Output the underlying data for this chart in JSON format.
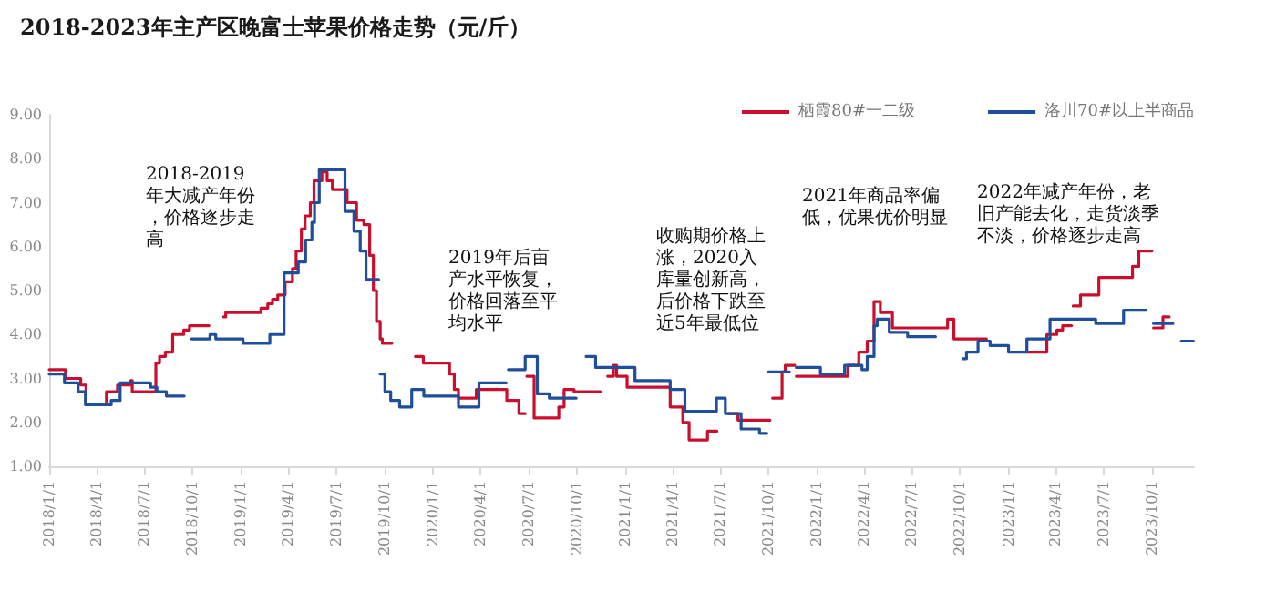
{
  "chart_data": {
    "type": "step",
    "title": "2018-2023年主产区晚富士苹果价格走势（元/斤）",
    "xlim": [
      "2018-01-01",
      "2023-12-20"
    ],
    "xticks": [
      {
        "value": "2018-01-01",
        "label": "2018/1/1"
      },
      {
        "value": "2018-04-01",
        "label": "2018/4/1"
      },
      {
        "value": "2018-07-01",
        "label": "2018/7/1"
      },
      {
        "value": "2018-10-01",
        "label": "2018/10/1"
      },
      {
        "value": "2019-01-01",
        "label": "2019/1/1"
      },
      {
        "value": "2019-04-01",
        "label": "2019/4/1"
      },
      {
        "value": "2019-07-01",
        "label": "2019/7/1"
      },
      {
        "value": "2019-10-01",
        "label": "2019/10/1"
      },
      {
        "value": "2020-01-01",
        "label": "2020/1/1"
      },
      {
        "value": "2020-04-01",
        "label": "2020/4/1"
      },
      {
        "value": "2020-07-01",
        "label": "2020/7/1"
      },
      {
        "value": "2020-10-01",
        "label": "2020/10/1"
      },
      {
        "value": "2021-01-01",
        "label": "2021/1/1"
      },
      {
        "value": "2021-04-01",
        "label": "2021/4/1"
      },
      {
        "value": "2021-07-01",
        "label": "2021/7/1"
      },
      {
        "value": "2021-10-01",
        "label": "2021/10/1"
      },
      {
        "value": "2022-01-01",
        "label": "2022/1/1"
      },
      {
        "value": "2022-04-01",
        "label": "2022/4/1"
      },
      {
        "value": "2022-07-01",
        "label": "2022/7/1"
      },
      {
        "value": "2022-10-01",
        "label": "2022/10/1"
      },
      {
        "value": "2023-01-01",
        "label": "2023/1/1"
      },
      {
        "value": "2023-04-01",
        "label": "2023/4/1"
      },
      {
        "value": "2023-07-01",
        "label": "2023/7/1"
      },
      {
        "value": "2023-10-01",
        "label": "2023/10/1"
      }
    ],
    "ylim": [
      1,
      9
    ],
    "yticks": [
      {
        "value": 1,
        "label": "1.00"
      },
      {
        "value": 2,
        "label": "2.00"
      },
      {
        "value": 3,
        "label": "3.00"
      },
      {
        "value": 4,
        "label": "4.00"
      },
      {
        "value": 5,
        "label": "5.00"
      },
      {
        "value": 6,
        "label": "6.00"
      },
      {
        "value": 7,
        "label": "7.00"
      },
      {
        "value": 8,
        "label": "8.00"
      },
      {
        "value": 9,
        "label": "9.00"
      }
    ],
    "grid": false,
    "legend": "top right",
    "marker": "none",
    "line_style": "solid",
    "series": [
      {
        "name": "栖霞80#一二级",
        "color": "#c8102e",
        "x": [
          "2018-01-01",
          "2018-02-01",
          "2018-03-02",
          "2018-03-12",
          "2018-04-20",
          "2018-05-11",
          "2018-06-05",
          "2018-06-08",
          "2018-07-23",
          "2018-07-30",
          "2018-08-10",
          "2018-08-24",
          "2018-09-14",
          "2018-09-25",
          "2018-09-28",
          "2018-11-01",
          "2018-11-29",
          "2018-12-03",
          "2019-02-08",
          "2019-02-21",
          "2019-03-02",
          "2019-03-12",
          "2019-03-26",
          "2019-04-09",
          "2019-04-16",
          "2019-04-26",
          "2019-05-03",
          "2019-05-13",
          "2019-05-20",
          "2019-06-04",
          "2019-06-14",
          "2019-06-24",
          "2019-07-22",
          "2019-08-09",
          "2019-08-23",
          "2019-09-03",
          "2019-09-10",
          "2019-09-16",
          "2019-09-23",
          "2019-09-27",
          "2019-10-15",
          "2019-11-29",
          "2019-12-14",
          "2020-02-02",
          "2020-02-11",
          "2020-02-19",
          "2020-03-24",
          "2020-05-21",
          "2020-06-13",
          "2020-06-19",
          "2020-06-25",
          "2020-06-28",
          "2020-07-12",
          "2020-08-28",
          "2020-09-07",
          "2020-09-26",
          "2020-10-13",
          "2020-11-15",
          "2020-11-29",
          "2020-12-10",
          "2020-12-16",
          "2021-01-05",
          "2021-03-28",
          "2021-04-21",
          "2021-05-03",
          "2021-06-07",
          "2021-06-19",
          "2021-06-25",
          "2021-07-17",
          "2021-08-04",
          "2021-09-25",
          "2021-10-04",
          "2021-10-09",
          "2021-10-27",
          "2021-11-02",
          "2021-11-20",
          "2021-11-23",
          "2022-03-01",
          "2022-03-22",
          "2022-04-07",
          "2022-04-20",
          "2022-05-02",
          "2022-05-25",
          "2022-09-07",
          "2022-09-19",
          "2022-09-30",
          "2022-10-05",
          "2022-10-17",
          "2022-11-04",
          "2022-11-20",
          "2023-02-05",
          "2023-03-15",
          "2023-04-03",
          "2023-04-14",
          "2023-05-01",
          "2023-05-03",
          "2023-05-04",
          "2023-05-18",
          "2023-06-22",
          "2023-08-25",
          "2023-09-06",
          "2023-09-23",
          "2023-10-01",
          "2023-10-04",
          "2023-10-22",
          "2023-11-03"
        ],
        "values": [
          3.2,
          3.0,
          2.85,
          2.4,
          2.7,
          2.85,
          2.95,
          2.7,
          3.35,
          3.5,
          3.6,
          4.0,
          4.1,
          4.2,
          4.2,
          null,
          4.4,
          4.5,
          4.6,
          4.7,
          4.8,
          4.9,
          5.2,
          5.5,
          5.9,
          6.4,
          6.7,
          7.0,
          7.5,
          7.7,
          7.5,
          7.3,
          7.0,
          6.6,
          6.5,
          5.8,
          5.0,
          4.3,
          3.9,
          3.8,
          null,
          3.5,
          3.35,
          3.1,
          2.75,
          2.55,
          2.75,
          2.5,
          2.2,
          2.2,
          null,
          3.05,
          2.1,
          2.35,
          2.75,
          2.7,
          2.7,
          null,
          3.05,
          3.3,
          3.05,
          2.8,
          2.35,
          2.0,
          1.6,
          1.8,
          1.8,
          null,
          2.2,
          2.05,
          2.05,
          null,
          2.55,
          3.15,
          3.3,
          null,
          3.05,
          3.3,
          3.6,
          3.85,
          4.75,
          4.5,
          4.15,
          4.35,
          3.9,
          3.9,
          3.9,
          3.9,
          3.9,
          null,
          3.6,
          4.0,
          4.1,
          4.2,
          4.2,
          null,
          4.65,
          4.9,
          5.3,
          5.55,
          5.9,
          5.9,
          null,
          4.15,
          4.4,
          4.4
        ]
      },
      {
        "name": "洛川70#以上半商品",
        "color": "#1f4e9a",
        "x": [
          "2018-01-01",
          "2018-01-30",
          "2018-02-25",
          "2018-03-11",
          "2018-04-29",
          "2018-05-16",
          "2018-07-13",
          "2018-07-25",
          "2018-08-12",
          "2018-08-27",
          "2018-09-15",
          "2018-09-29",
          "2018-11-03",
          "2018-11-14",
          "2019-01-05",
          "2019-02-25",
          "2019-03-24",
          "2019-04-20",
          "2019-05-04",
          "2019-05-16",
          "2019-05-21",
          "2019-05-30",
          "2019-07-18",
          "2019-08-04",
          "2019-08-16",
          "2019-08-27",
          "2019-09-08",
          "2019-09-20",
          "2019-09-23",
          "2019-10-02",
          "2019-10-13",
          "2019-10-30",
          "2019-11-22",
          "2019-12-15",
          "2020-02-19",
          "2020-03-29",
          "2020-05-15",
          "2020-05-20",
          "2020-05-24",
          "2020-06-25",
          "2020-07-18",
          "2020-08-10",
          "2020-08-28",
          "2020-09-30",
          "2020-10-19",
          "2020-11-06",
          "2021-01-20",
          "2021-03-28",
          "2021-04-25",
          "2021-06-24",
          "2021-07-11",
          "2021-08-10",
          "2021-09-14",
          "2021-09-23",
          "2021-09-28",
          "2021-10-01",
          "2021-11-01",
          "2021-11-10",
          "2021-11-23",
          "2022-01-08",
          "2022-02-23",
          "2022-03-28",
          "2022-04-07",
          "2022-04-20",
          "2022-04-26",
          "2022-05-19",
          "2022-06-23",
          "2022-07-27",
          "2022-08-15",
          "2022-10-06",
          "2022-10-13",
          "2022-11-04",
          "2022-11-27",
          "2023-01-01",
          "2023-02-05",
          "2023-03-21",
          "2023-06-16",
          "2023-08-08",
          "2023-08-29",
          "2023-09-20",
          "2023-10-04",
          "2023-11-03",
          "2023-11-10",
          "2023-11-26",
          "2023-12-19"
        ],
        "values": [
          3.1,
          2.9,
          2.7,
          2.4,
          2.5,
          2.9,
          2.8,
          2.7,
          2.6,
          2.6,
          null,
          3.9,
          4.0,
          3.9,
          3.8,
          4.0,
          5.4,
          5.65,
          6.15,
          6.55,
          7.0,
          7.75,
          6.8,
          6.35,
          5.9,
          5.25,
          5.25,
          null,
          3.1,
          2.7,
          2.5,
          2.35,
          2.75,
          2.6,
          2.35,
          2.9,
          2.9,
          null,
          3.2,
          3.5,
          2.65,
          2.55,
          2.55,
          null,
          3.5,
          3.25,
          2.95,
          2.75,
          2.25,
          2.55,
          2.2,
          1.85,
          1.75,
          1.75,
          null,
          3.15,
          3.15,
          null,
          3.25,
          3.1,
          3.3,
          3.2,
          3.5,
          4.2,
          4.35,
          4.05,
          3.95,
          3.95,
          null,
          3.45,
          3.6,
          3.85,
          3.75,
          3.6,
          3.9,
          4.35,
          4.25,
          4.55,
          4.55,
          null,
          4.25,
          4.25,
          null,
          3.85,
          3.85
        ]
      }
    ],
    "annotations": [
      "2018-2019年大减产年份，价格逐步走高",
      "2019年后亩产水平恢复，价格回落至平均水平",
      "收购期价格上涨，2020入库量创新高，后价格下跌至近5年最低位",
      "2021年商品率偏低，优果优价明显",
      "2022年减产年份，老旧产能去化，走货淡季不淡，价格逐步走高"
    ]
  }
}
